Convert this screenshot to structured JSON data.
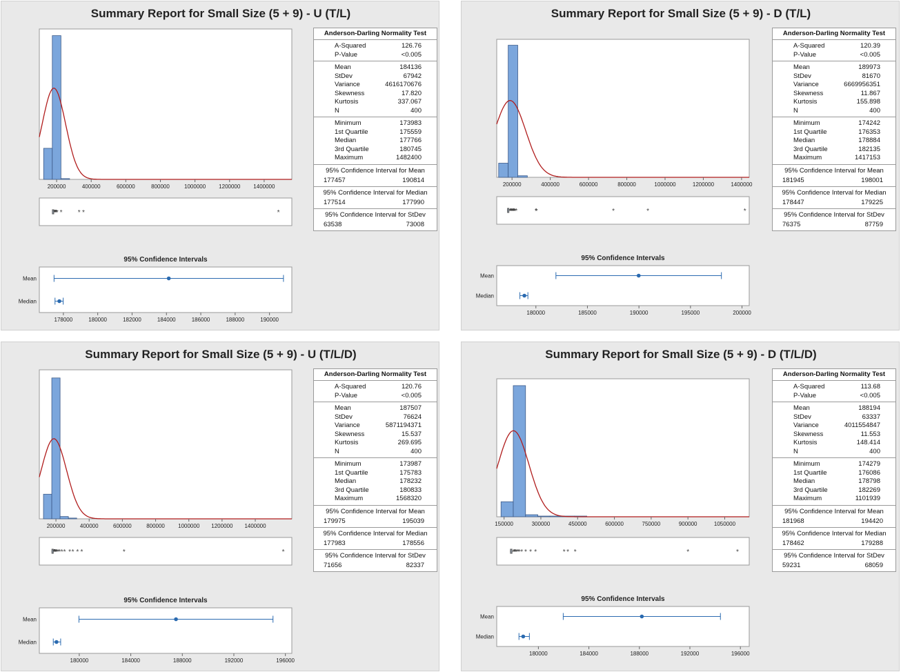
{
  "chart_data": [
    {
      "type": "histogram",
      "title": "Summary Report for Small Size (5 + 9) - U (T/L)",
      "histogram": {
        "xlim": [
          100000,
          1560000
        ],
        "ticks": [
          200000,
          400000,
          600000,
          800000,
          1000000,
          1200000,
          1400000
        ],
        "bin_edges": [
          125000,
          175000,
          225000,
          275000
        ],
        "heights": [
          40,
          185,
          1
        ],
        "ymax": 190,
        "normal_fit": {
          "mean": 184136,
          "sd": 67942
        }
      },
      "boxplot": {
        "whisker": [
          173983,
          186600
        ],
        "outliers": [
          187500,
          189500,
          191500,
          193500,
          196000,
          198500,
          203000,
          226000,
          330000,
          355000,
          1482400
        ]
      },
      "ci_chart": {
        "title": "95% Confidence Intervals",
        "xlim": [
          176600,
          191300
        ],
        "ticks": [
          178000,
          180000,
          182000,
          184000,
          186000,
          188000,
          190000
        ],
        "mean": {
          "label": "Mean",
          "low": 177457,
          "point": 184136,
          "high": 190814
        },
        "median": {
          "label": "Median",
          "low": 177514,
          "point": 177766,
          "high": 177990
        }
      },
      "stats": {
        "header": "Anderson-Darling Normality Test",
        "normality": [
          [
            "A-Squared",
            "126.76"
          ],
          [
            "P-Value",
            "<0.005"
          ]
        ],
        "moments": [
          [
            "Mean",
            "184136"
          ],
          [
            "StDev",
            "67942"
          ],
          [
            "Variance",
            "4616170676"
          ],
          [
            "Skewness",
            "17.820"
          ],
          [
            "Kurtosis",
            "337.067"
          ],
          [
            "N",
            "400"
          ]
        ],
        "quartiles": [
          [
            "Minimum",
            "173983"
          ],
          [
            "1st Quartile",
            "175559"
          ],
          [
            "Median",
            "177766"
          ],
          [
            "3rd Quartile",
            "180745"
          ],
          [
            "Maximum",
            "1482400"
          ]
        ],
        "intervals": [
          {
            "title": "95% Confidence Interval for Mean",
            "low": "177457",
            "high": "190814"
          },
          {
            "title": "95% Confidence Interval for Median",
            "low": "177514",
            "high": "177990"
          },
          {
            "title": "95% Confidence Interval for StDev",
            "low": "63538",
            "high": "73008"
          }
        ]
      }
    },
    {
      "type": "histogram",
      "title": "Summary Report for Small Size (5 + 9) - D (T/L)",
      "histogram": {
        "xlim": [
          120000,
          1440000
        ],
        "ticks": [
          200000,
          400000,
          600000,
          800000,
          1000000,
          1200000,
          1400000
        ],
        "bin_edges": [
          130000,
          180000,
          230000,
          280000
        ],
        "heights": [
          18,
          168,
          2
        ],
        "ymax": 172,
        "normal_fit": {
          "mean": 189973,
          "sd": 81670
        }
      },
      "boxplot": {
        "whisker": [
          174242,
          188600
        ],
        "outliers": [
          190000,
          193000,
          195500,
          198000,
          201000,
          204000,
          207000,
          209000,
          212000,
          215000,
          222000,
          325000,
          328000,
          730000,
          910000,
          1417153
        ]
      },
      "ci_chart": {
        "title": "95% Confidence Intervals",
        "xlim": [
          176200,
          200700
        ],
        "ticks": [
          180000,
          185000,
          190000,
          195000,
          200000
        ],
        "mean": {
          "label": "Mean",
          "low": 181945,
          "point": 189973,
          "high": 198001
        },
        "median": {
          "label": "Median",
          "low": 178447,
          "point": 178884,
          "high": 179225
        }
      },
      "stats": {
        "header": "Anderson-Darling Normality Test",
        "normality": [
          [
            "A-Squared",
            "120.39"
          ],
          [
            "P-Value",
            "<0.005"
          ]
        ],
        "moments": [
          [
            "Mean",
            "189973"
          ],
          [
            "StDev",
            "81670"
          ],
          [
            "Variance",
            "6669956351"
          ],
          [
            "Skewness",
            "11.867"
          ],
          [
            "Kurtosis",
            "155.898"
          ],
          [
            "N",
            "400"
          ]
        ],
        "quartiles": [
          [
            "Minimum",
            "174242"
          ],
          [
            "1st Quartile",
            "176353"
          ],
          [
            "Median",
            "178884"
          ],
          [
            "3rd Quartile",
            "182135"
          ],
          [
            "Maximum",
            "1417153"
          ]
        ],
        "intervals": [
          {
            "title": "95% Confidence Interval for Mean",
            "low": "181945",
            "high": "198001"
          },
          {
            "title": "95% Confidence Interval for Median",
            "low": "178447",
            "high": "179225"
          },
          {
            "title": "95% Confidence Interval for StDev",
            "low": "76375",
            "high": "87759"
          }
        ]
      }
    },
    {
      "type": "histogram",
      "title": "Summary Report for Small Size (5 + 9) - U (T/L/D)",
      "histogram": {
        "xlim": [
          100000,
          1620000
        ],
        "ticks": [
          200000,
          400000,
          600000,
          800000,
          1000000,
          1200000,
          1400000
        ],
        "bin_edges": [
          125000,
          175000,
          225000,
          275000,
          325000
        ],
        "heights": [
          32,
          183,
          3,
          1
        ],
        "ymax": 190,
        "normal_fit": {
          "mean": 187507,
          "sd": 76624
        }
      },
      "boxplot": {
        "whisker": [
          173987,
          186400
        ],
        "outliers": [
          188000,
          190000,
          192500,
          195000,
          198000,
          201000,
          205000,
          213000,
          222000,
          236000,
          252000,
          283000,
          302000,
          330000,
          355000,
          610000,
          1568320
        ]
      },
      "ci_chart": {
        "title": "95% Confidence Intervals",
        "xlim": [
          176900,
          196500
        ],
        "ticks": [
          180000,
          184000,
          188000,
          192000,
          196000
        ],
        "mean": {
          "label": "Mean",
          "low": 179975,
          "point": 187507,
          "high": 195039
        },
        "median": {
          "label": "Median",
          "low": 177983,
          "point": 178232,
          "high": 178556
        }
      },
      "stats": {
        "header": "Anderson-Darling Normality Test",
        "normality": [
          [
            "A-Squared",
            "120.76"
          ],
          [
            "P-Value",
            "<0.005"
          ]
        ],
        "moments": [
          [
            "Mean",
            "187507"
          ],
          [
            "StDev",
            "76624"
          ],
          [
            "Variance",
            "5871194371"
          ],
          [
            "Skewness",
            "15.537"
          ],
          [
            "Kurtosis",
            "269.695"
          ],
          [
            "N",
            "400"
          ]
        ],
        "quartiles": [
          [
            "Minimum",
            "173987"
          ],
          [
            "1st Quartile",
            "175783"
          ],
          [
            "Median",
            "178232"
          ],
          [
            "3rd Quartile",
            "180833"
          ],
          [
            "Maximum",
            "1568320"
          ]
        ],
        "intervals": [
          {
            "title": "95% Confidence Interval for Mean",
            "low": "179975",
            "high": "195039"
          },
          {
            "title": "95% Confidence Interval for Median",
            "low": "177983",
            "high": "178556"
          },
          {
            "title": "95% Confidence Interval for StDev",
            "low": "71656",
            "high": "82337"
          }
        ]
      }
    },
    {
      "type": "histogram",
      "title": "Summary Report for Small Size (5 + 9) - D (T/L/D)",
      "histogram": {
        "xlim": [
          120000,
          1150000
        ],
        "ticks": [
          150000,
          300000,
          450000,
          600000,
          750000,
          900000,
          1050000
        ],
        "bin_edges": [
          137500,
          187500,
          237500,
          287500,
          337500,
          387500,
          437500,
          487500
        ],
        "heights": [
          22,
          192,
          3,
          1,
          1,
          1,
          1
        ],
        "ymax": 198,
        "normal_fit": {
          "mean": 188194,
          "sd": 63337
        }
      },
      "boxplot": {
        "whisker": [
          174279,
          188400
        ],
        "outliers": [
          190000,
          192000,
          195000,
          198000,
          202000,
          207000,
          212000,
          222000,
          238000,
          258000,
          278000,
          395000,
          410000,
          440000,
          900000,
          1101939
        ]
      },
      "ci_chart": {
        "title": "95% Confidence Intervals",
        "xlim": [
          176700,
          196700
        ],
        "ticks": [
          180000,
          184000,
          188000,
          192000,
          196000
        ],
        "mean": {
          "label": "Mean",
          "low": 181968,
          "point": 188194,
          "high": 194420
        },
        "median": {
          "label": "Median",
          "low": 178462,
          "point": 178798,
          "high": 179288
        }
      },
      "stats": {
        "header": "Anderson-Darling Normality Test",
        "normality": [
          [
            "A-Squared",
            "113.68"
          ],
          [
            "P-Value",
            "<0.005"
          ]
        ],
        "moments": [
          [
            "Mean",
            "188194"
          ],
          [
            "StDev",
            "63337"
          ],
          [
            "Variance",
            "4011554847"
          ],
          [
            "Skewness",
            "11.553"
          ],
          [
            "Kurtosis",
            "148.414"
          ],
          [
            "N",
            "400"
          ]
        ],
        "quartiles": [
          [
            "Minimum",
            "174279"
          ],
          [
            "1st Quartile",
            "176086"
          ],
          [
            "Median",
            "178798"
          ],
          [
            "3rd Quartile",
            "182269"
          ],
          [
            "Maximum",
            "1101939"
          ]
        ],
        "intervals": [
          {
            "title": "95% Confidence Interval for Mean",
            "low": "181968",
            "high": "194420"
          },
          {
            "title": "95% Confidence Interval for Median",
            "low": "178462",
            "high": "179288"
          },
          {
            "title": "95% Confidence Interval for StDev",
            "low": "59231",
            "high": "68059"
          }
        ]
      }
    }
  ],
  "colors": {
    "panel_bg": "#e9e9e9",
    "bar_fill": "#7ba6dc",
    "bar_stroke": "#3c5a88",
    "normal_curve": "#b01c1c",
    "interval": "#2a6ab0",
    "box": "#555555",
    "outlier": "#444444"
  }
}
